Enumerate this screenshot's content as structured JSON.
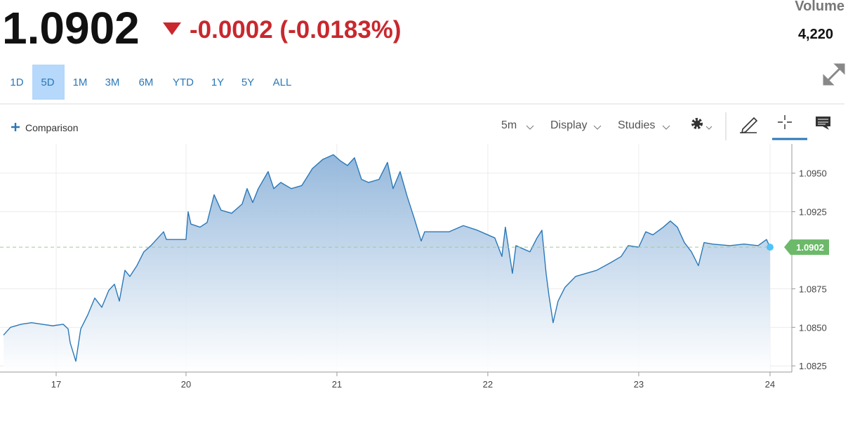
{
  "header": {
    "price": "1.0902",
    "change": "-0.0002 (-0.0183%)",
    "volume_label": "Volume",
    "volume": "4,220"
  },
  "ranges": [
    "1D",
    "5D",
    "1M",
    "3M",
    "6M",
    "YTD",
    "1Y",
    "5Y",
    "ALL"
  ],
  "selected_range": "5D",
  "toolbar": {
    "comparison": "Comparison",
    "interval": "5m",
    "display": "Display",
    "studies": "Studies"
  },
  "chart_data": {
    "type": "line",
    "color": "#2a78b8",
    "grid": true,
    "last_price": 1.0902,
    "x": [
      -8.37,
      -7.26,
      -5.58,
      -3.91,
      -2.23,
      -0.56,
      1.12,
      1.9,
      2.23,
      3.13,
      3.91,
      5.02,
      6.14,
      7.26,
      8.37,
      9.27,
      10.05,
      10.94,
      11.72,
      12.84,
      13.95,
      15.07,
      16.19,
      17.08,
      17.53,
      20.65,
      20.99,
      21.43,
      22.88,
      24.0,
      25.12,
      26.23,
      27.91,
      29.58,
      30.36,
      31.26,
      32.15,
      33.71,
      34.61,
      35.72,
      37.4,
      39.07,
      40.75,
      42.42,
      44.09,
      45.21,
      46.33,
      47.44,
      48.56,
      49.67,
      51.35,
      52.69,
      53.58,
      54.7,
      55.82,
      56.93,
      58.05,
      58.61,
      60.28,
      62.51,
      64.75,
      66.98,
      68.65,
      69.77,
      70.89,
      71.44,
      72.56,
      73.12,
      74.23,
      75.35,
      76.47,
      77.25,
      77.92,
      78.36,
      79.03,
      79.82,
      80.93,
      82.61,
      84.28,
      85.96,
      88.19,
      89.86,
      90.98,
      92.65,
      93.77,
      94.89,
      96.56,
      97.68,
      98.79,
      99.91,
      101.03,
      102.14,
      103.04,
      104.37,
      107.16,
      109.4,
      111.63,
      112.97,
      113.53
    ],
    "values": [
      1.0845,
      1.085,
      1.0852,
      1.0853,
      1.0852,
      1.0851,
      1.0852,
      1.0849,
      1.084,
      1.0828,
      1.0849,
      1.0858,
      1.0869,
      1.0863,
      1.0874,
      1.0878,
      1.0867,
      1.0887,
      1.0883,
      1.089,
      1.0899,
      1.0903,
      1.0908,
      1.0912,
      1.0907,
      1.0907,
      1.0925,
      1.0917,
      1.0915,
      1.0918,
      1.0936,
      1.0926,
      1.0924,
      1.093,
      1.094,
      1.0931,
      1.094,
      1.0951,
      1.094,
      1.0944,
      1.094,
      1.0942,
      1.0953,
      1.0959,
      1.0962,
      1.0958,
      1.0955,
      1.096,
      1.0946,
      1.0944,
      1.0946,
      1.0957,
      1.094,
      1.0951,
      1.0935,
      1.0921,
      1.0906,
      1.0912,
      1.0912,
      1.0912,
      1.0916,
      1.0913,
      1.091,
      1.0908,
      1.0896,
      1.0915,
      1.0885,
      1.0903,
      1.0901,
      1.0899,
      1.0908,
      1.0913,
      1.0885,
      1.0871,
      1.0853,
      1.0867,
      1.0876,
      1.0883,
      1.0885,
      1.0887,
      1.0892,
      1.0896,
      1.0903,
      1.0902,
      1.0912,
      1.091,
      1.0915,
      1.0919,
      1.0915,
      1.0905,
      1.0899,
      1.089,
      1.0905,
      1.0904,
      1.0903,
      1.0904,
      1.0903,
      1.0907,
      1.0902
    ],
    "xlim": [
      -8.93,
      117.0
    ],
    "xticks": [
      {
        "value": 0,
        "label": "17"
      },
      {
        "value": 20.65,
        "label": "20"
      },
      {
        "value": 44.65,
        "label": "21"
      },
      {
        "value": 68.65,
        "label": "22"
      },
      {
        "value": 92.65,
        "label": "23"
      },
      {
        "value": 113.53,
        "label": "24"
      }
    ],
    "ylim": [
      1.0821,
      1.0969
    ],
    "yticks": [
      {
        "value": 1.0825,
        "label": "1.0825"
      },
      {
        "value": 1.085,
        "label": "1.0850"
      },
      {
        "value": 1.0875,
        "label": "1.0875"
      },
      1.0925,
      {
        "value": 1.095,
        "label": "1.0950"
      }
    ]
  }
}
